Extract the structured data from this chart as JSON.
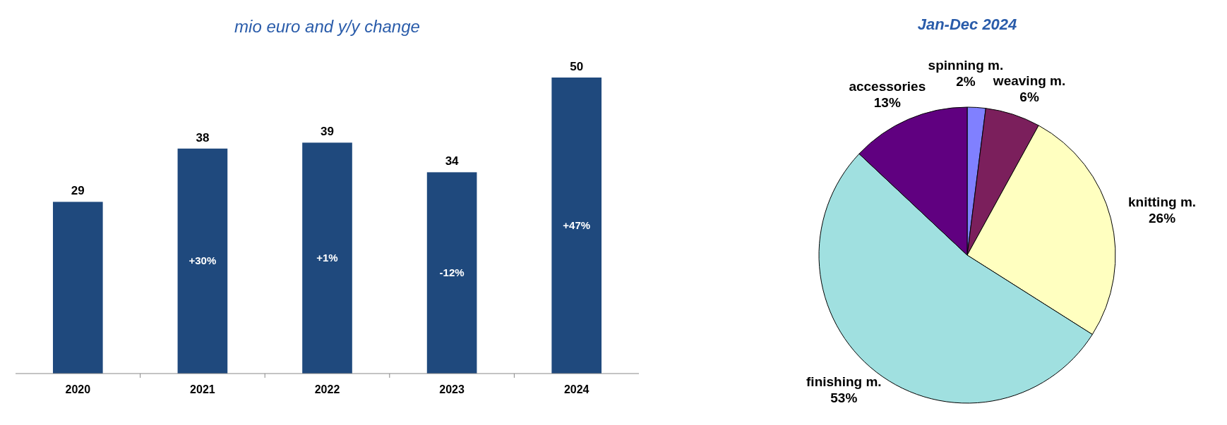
{
  "chart_data": [
    {
      "type": "bar",
      "title": "mio euro and y/y change",
      "categories": [
        "2020",
        "2021",
        "2022",
        "2023",
        "2024"
      ],
      "values": [
        29,
        38,
        39,
        34,
        50
      ],
      "color": "#1f497d",
      "data_labels": true,
      "annotations": [
        "+30%",
        "+1%",
        "-12%",
        "+47%"
      ]
    },
    {
      "type": "pie",
      "title": "Jan-Dec 2024",
      "categories": [
        "spinning m.",
        "weaving m.",
        "knitting m.",
        "finishing m.",
        "accessories"
      ],
      "values": [
        2,
        6,
        26,
        53,
        13
      ],
      "colors": [
        "#8080ff",
        "#7b1f5c",
        "#ffffc0",
        "#a0e0e0",
        "#600080"
      ],
      "value_labels": [
        "2%",
        "6%",
        "26%",
        "53%",
        "13%"
      ]
    }
  ]
}
